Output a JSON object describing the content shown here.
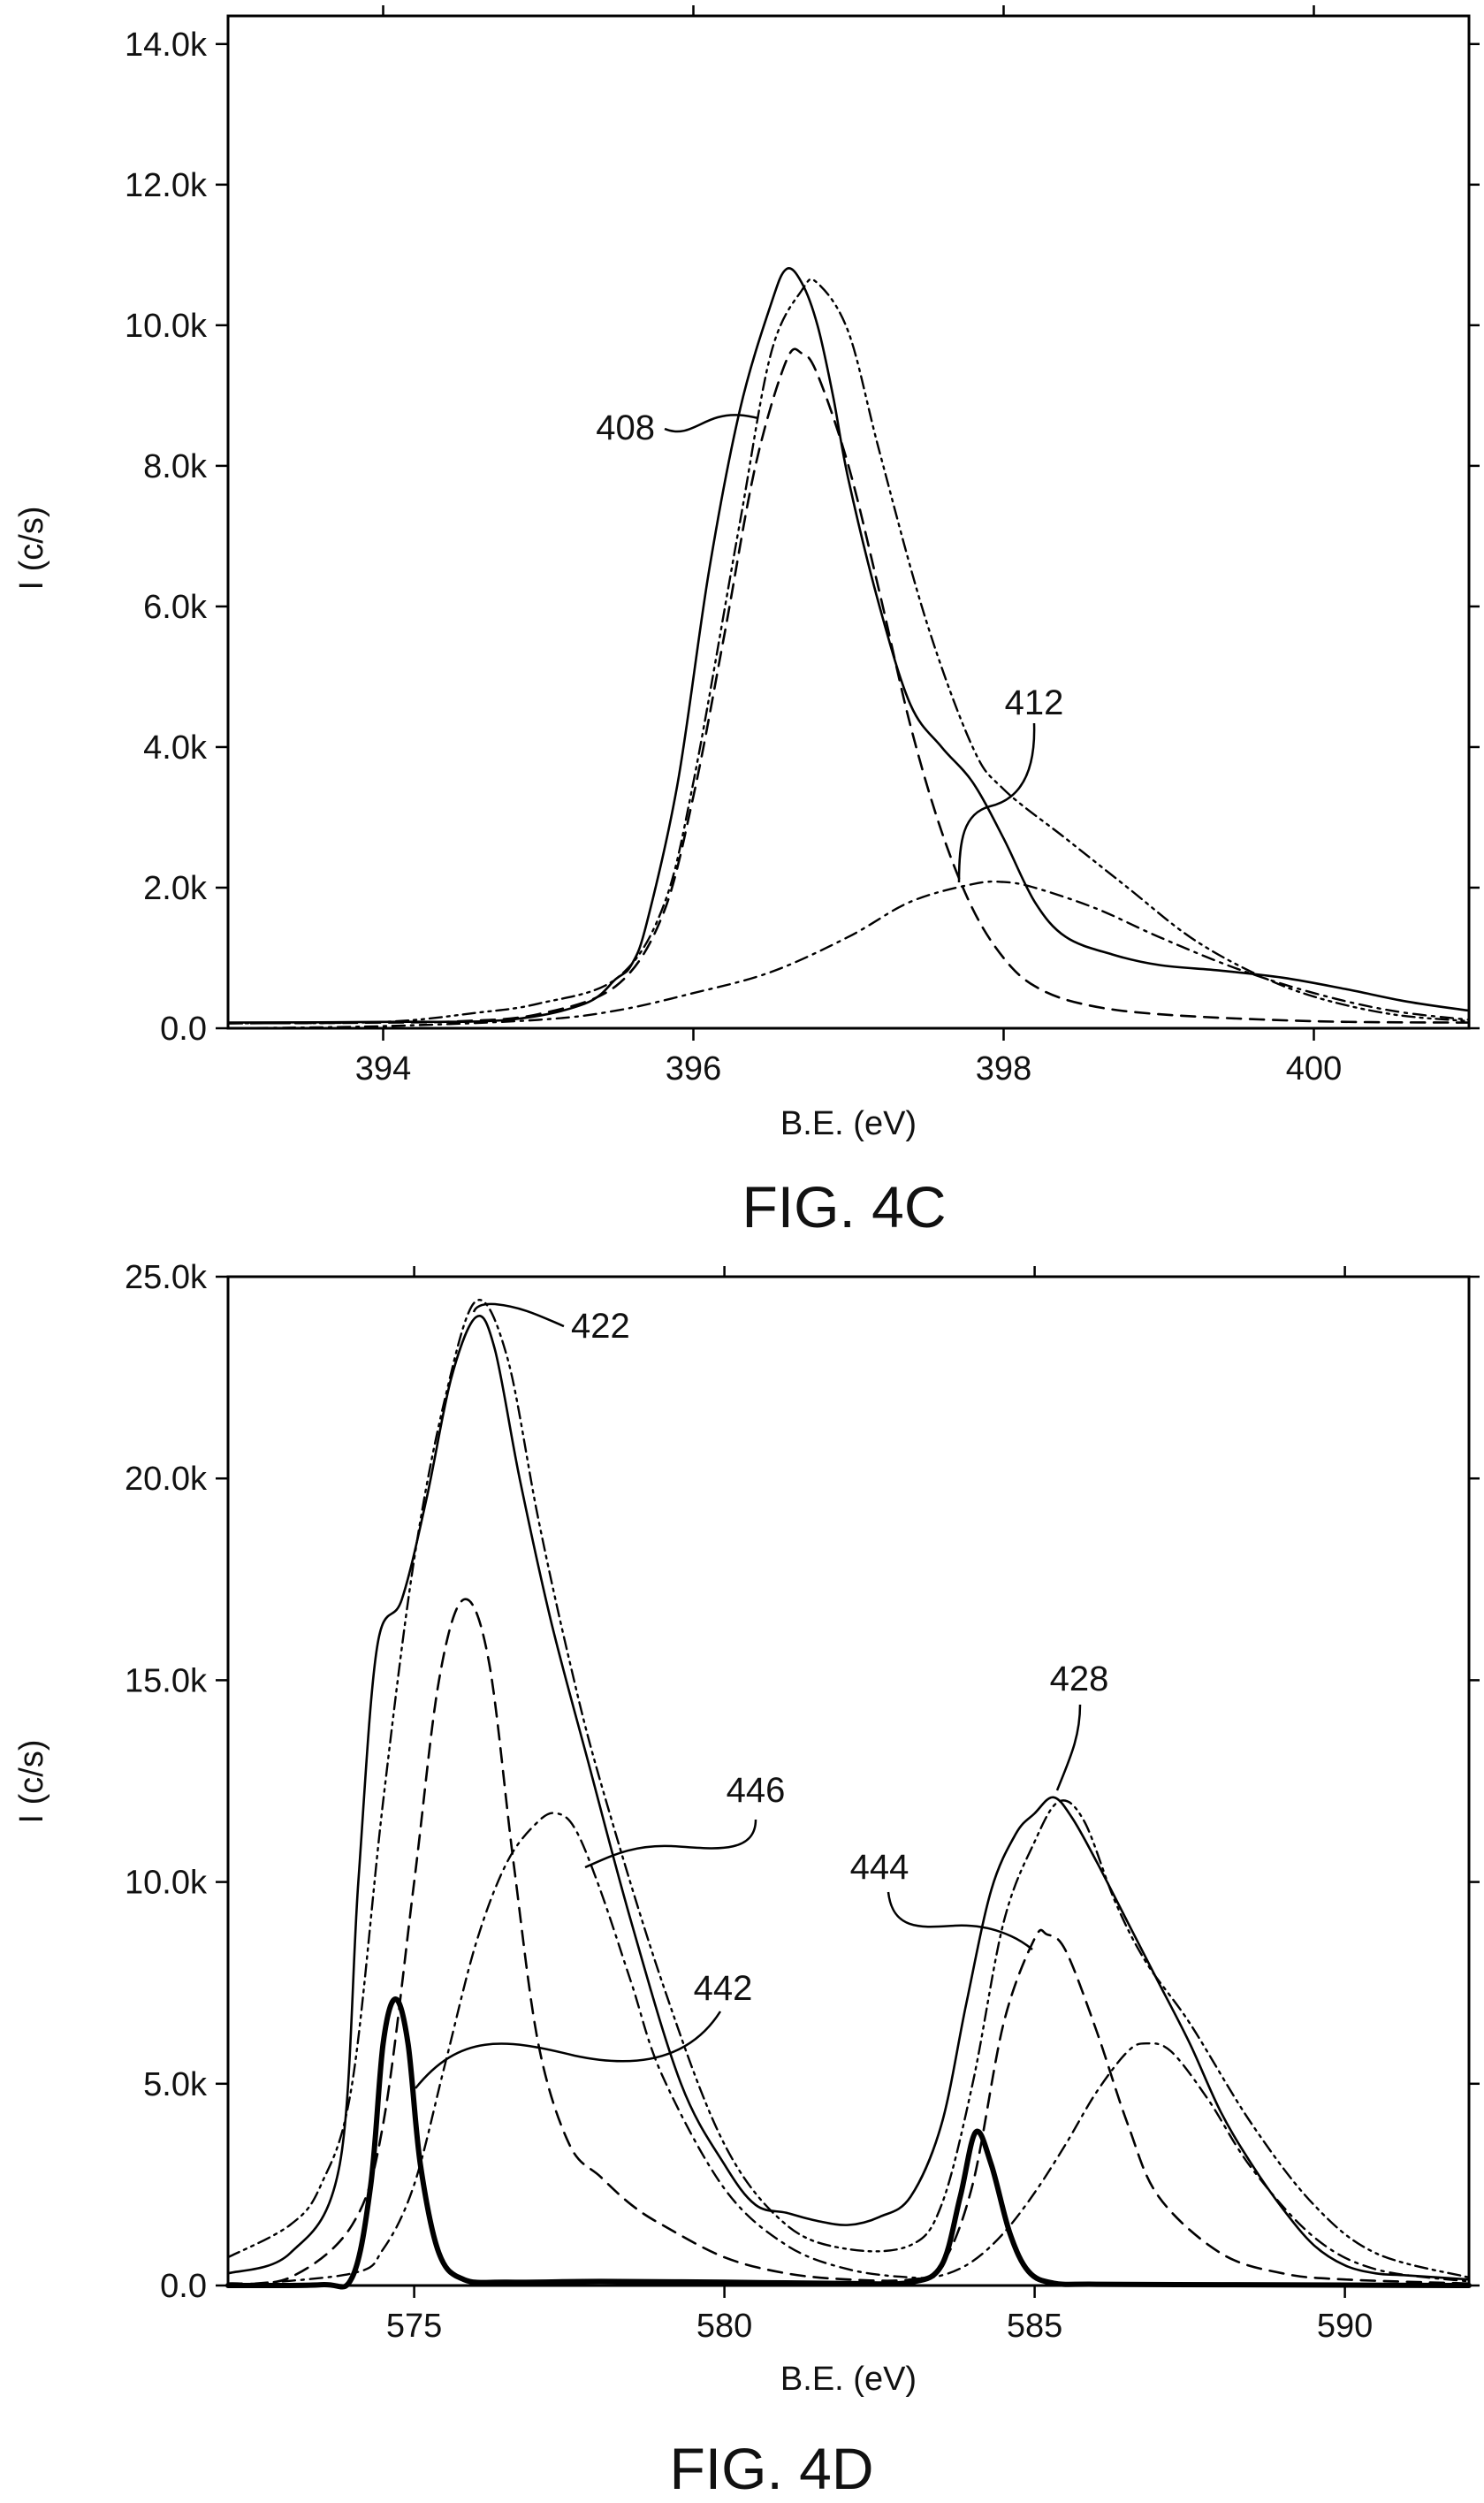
{
  "chart_data": [
    {
      "type": "line",
      "caption": "FIG. 4C",
      "xlabel": "B.E. (eV)",
      "ylabel": "I (c/s)",
      "xlim": [
        393,
        401
      ],
      "ylim": [
        0,
        14400
      ],
      "x_ticks": [
        394,
        396,
        398,
        400
      ],
      "x_tick_labels": [
        "394",
        "396",
        "398",
        "400"
      ],
      "y_ticks": [
        0,
        2000,
        4000,
        6000,
        8000,
        10000,
        12000,
        14000
      ],
      "y_tick_labels": [
        "0.0",
        "2.0k",
        "4.0k",
        "6.0k",
        "8.0k",
        "10.0k",
        "12.0k",
        "14.0k"
      ],
      "series": [
        {
          "style": "solid",
          "x": [
            393,
            394,
            394.8,
            395.3,
            395.5,
            395.6,
            395.7,
            395.9,
            396.1,
            396.3,
            396.5,
            396.6,
            396.7,
            396.8,
            396.9,
            397.0,
            397.2,
            397.4,
            397.6,
            397.8,
            398.0,
            398.2,
            398.4,
            398.7,
            399.0,
            399.4,
            399.8,
            400.2,
            400.6,
            401
          ],
          "y": [
            80,
            90,
            120,
            350,
            700,
            900,
            1500,
            3500,
            6500,
            8800,
            10300,
            10800,
            10600,
            10000,
            9000,
            7800,
            6000,
            4600,
            4000,
            3500,
            2700,
            1800,
            1300,
            1050,
            900,
            820,
            720,
            560,
            380,
            250
          ]
        },
        {
          "style": "dashed",
          "x": [
            393,
            394,
            394.5,
            395,
            395.5,
            395.8,
            396.0,
            396.2,
            396.4,
            396.6,
            396.7,
            396.8,
            397.0,
            397.2,
            397.4,
            397.6,
            397.8,
            398.0,
            398.2,
            398.5,
            399,
            400,
            401
          ],
          "y": [
            70,
            80,
            100,
            200,
            600,
            1600,
            3300,
            5600,
            8000,
            9500,
            9600,
            9300,
            8000,
            6200,
            4300,
            2800,
            1700,
            1000,
            600,
            350,
            200,
            100,
            80
          ]
        },
        {
          "style": "dashdot",
          "x": [
            393,
            394,
            395,
            395.5,
            396,
            396.5,
            397,
            397.4,
            397.8,
            398.0,
            398.2,
            398.6,
            399,
            399.5,
            400,
            400.5,
            401
          ],
          "y": [
            0,
            30,
            120,
            250,
            500,
            800,
            1300,
            1800,
            2050,
            2080,
            2000,
            1700,
            1300,
            850,
            500,
            250,
            120
          ]
        },
        {
          "style": "dashdotdot",
          "x": [
            393,
            394,
            394.6,
            395,
            395.5,
            395.8,
            396.0,
            396.3,
            396.5,
            396.7,
            396.8,
            397.0,
            397.2,
            397.5,
            397.8,
            398.0,
            398.4,
            398.8,
            399.2,
            399.6,
            400,
            400.5,
            401
          ],
          "y": [
            70,
            90,
            220,
            350,
            700,
            1700,
            3500,
            7200,
            9600,
            10500,
            10600,
            9900,
            8200,
            5800,
            4000,
            3400,
            2700,
            2000,
            1300,
            800,
            450,
            200,
            100
          ]
        }
      ],
      "annotations": [
        "408",
        "412"
      ]
    },
    {
      "type": "line",
      "caption": "FIG. 4D",
      "xlabel": "B.E. (eV)",
      "ylabel": "I (c/s)",
      "xlim": [
        572,
        592
      ],
      "ylim": [
        0,
        25000
      ],
      "x_ticks": [
        575,
        580,
        585,
        590
      ],
      "x_tick_labels": [
        "575",
        "580",
        "585",
        "590"
      ],
      "y_ticks": [
        0,
        5000,
        10000,
        15000,
        20000,
        25000
      ],
      "y_tick_labels": [
        "0.0",
        "5.0k",
        "10.0k",
        "15.0k",
        "20.0k",
        "25.0k"
      ],
      "series": [
        {
          "style": "solid",
          "x": [
            572,
            573,
            573.8,
            574.1,
            574.4,
            574.8,
            575.2,
            575.6,
            576.0,
            576.3,
            576.7,
            577.2,
            577.8,
            578.5,
            579.3,
            580,
            580.5,
            581,
            581.5,
            582,
            582.5,
            583,
            583.5,
            583.9,
            584.3,
            584.7,
            585.0,
            585.3,
            585.6,
            586.0,
            586.5,
            587.0,
            587.5,
            588,
            588.5,
            589,
            589.5,
            590,
            590.5,
            591,
            592
          ],
          "y": [
            300,
            800,
            3000,
            10000,
            15800,
            17000,
            19500,
            22500,
            24000,
            23200,
            20000,
            16500,
            13000,
            9000,
            5000,
            3000,
            2000,
            1800,
            1600,
            1500,
            1700,
            2200,
            4000,
            7000,
            9800,
            11200,
            11700,
            12100,
            11600,
            10500,
            9000,
            7500,
            6000,
            4300,
            3000,
            1900,
            1000,
            500,
            300,
            250,
            150
          ]
        },
        {
          "style": "dashed",
          "x": [
            572,
            573,
            574,
            574.5,
            575.0,
            575.4,
            575.8,
            576.2,
            576.6,
            577.0,
            577.5,
            578,
            578.5,
            579,
            580,
            581,
            582,
            583,
            583.5,
            584,
            584.5,
            585.0,
            585.2,
            585.5,
            586.0,
            586.5,
            587,
            588,
            589,
            590,
            592
          ],
          "y": [
            50,
            200,
            1500,
            4000,
            10000,
            15000,
            17000,
            15500,
            10500,
            6000,
            3500,
            2700,
            2000,
            1500,
            700,
            300,
            150,
            150,
            500,
            2500,
            6500,
            8600,
            8700,
            8300,
            6300,
            4000,
            2200,
            800,
            300,
            150,
            50
          ]
        },
        {
          "style": "dashdot",
          "x": [
            572,
            574,
            574.5,
            575.0,
            575.5,
            576.0,
            576.5,
            577.0,
            577.3,
            577.6,
            578.0,
            578.5,
            579,
            580,
            581,
            582,
            583,
            583.5,
            584,
            584.5,
            585,
            585.5,
            586.0,
            586.5,
            586.8,
            587.2,
            587.8,
            588.5,
            589.5,
            590.5,
            592
          ],
          "y": [
            0,
            300,
            900,
            2500,
            5500,
            8500,
            10500,
            11500,
            11700,
            11300,
            9800,
            7500,
            5200,
            2400,
            1000,
            400,
            200,
            250,
            600,
            1300,
            2300,
            3500,
            4800,
            5800,
            6000,
            5800,
            4600,
            2900,
            1200,
            400,
            100
          ]
        },
        {
          "style": "dashdotdot",
          "x": [
            572,
            573,
            573.5,
            574.0,
            574.5,
            575.0,
            575.5,
            576.0,
            576.5,
            577.0,
            577.5,
            578,
            579,
            580,
            581,
            582,
            583,
            583.5,
            584,
            584.5,
            585.0,
            585.4,
            585.8,
            586.3,
            586.8,
            587.5,
            588.5,
            589.5,
            590.5,
            592
          ],
          "y": [
            700,
            1500,
            2500,
            5000,
            12000,
            18000,
            22000,
            24400,
            23000,
            19000,
            15500,
            12500,
            7500,
            3500,
            1500,
            900,
            1000,
            2000,
            5000,
            9000,
            11000,
            12000,
            11500,
            9500,
            8000,
            6500,
            4000,
            2000,
            800,
            200
          ]
        },
        {
          "style": "bold",
          "x": [
            572,
            573.5,
            574.0,
            574.3,
            574.5,
            574.7,
            574.9,
            575.1,
            575.4,
            575.8,
            576.5,
            578,
            580,
            582,
            583.0,
            583.5,
            583.8,
            584.05,
            584.3,
            584.6,
            584.9,
            585.3,
            586,
            588,
            590,
            592
          ],
          "y": [
            0,
            20,
            200,
            2500,
            6000,
            7100,
            6000,
            3000,
            800,
            150,
            80,
            100,
            80,
            50,
            80,
            500,
            2200,
            3800,
            3000,
            1300,
            350,
            60,
            30,
            20,
            10,
            0
          ]
        }
      ],
      "annotations": [
        "422",
        "428",
        "446",
        "444",
        "442"
      ]
    }
  ]
}
